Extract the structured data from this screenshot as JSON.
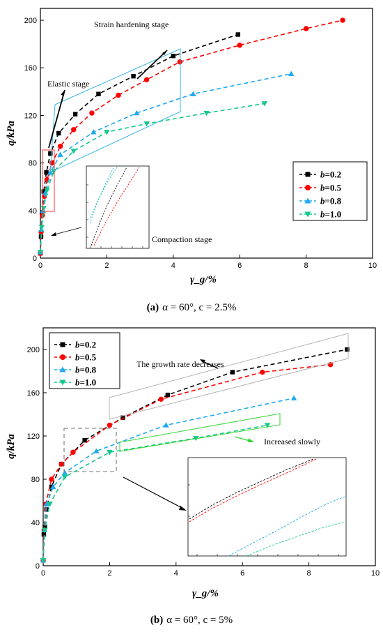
{
  "chart_data": [
    {
      "type": "line",
      "caption_label": "(a)",
      "caption_text": "α = 60°, c = 2.5%",
      "xlabel": "γ_g/%",
      "ylabel": "q/kPa",
      "xlim": [
        0,
        10
      ],
      "ylim": [
        0,
        210
      ],
      "xticks": [
        0,
        2,
        4,
        6,
        8,
        10
      ],
      "yticks": [
        0,
        40,
        80,
        120,
        160,
        200
      ],
      "legend_position": "middle-right",
      "annotations": [
        "Strain hardening stage",
        "Elastic stage",
        "Compaction stage"
      ],
      "series": [
        {
          "name": "b=0.2",
          "color": "#000000",
          "marker": "square",
          "x": [
            0.0,
            0.02,
            0.05,
            0.1,
            0.18,
            0.3,
            0.55,
            1.05,
            1.75,
            2.8,
            4.0,
            5.95
          ],
          "y": [
            4,
            18,
            37,
            56,
            72,
            88,
            105,
            121,
            138,
            153,
            170,
            188
          ]
        },
        {
          "name": "b=0.5",
          "color": "#ff0000",
          "marker": "circle",
          "x": [
            0.0,
            0.02,
            0.06,
            0.12,
            0.2,
            0.35,
            0.6,
            1.0,
            1.55,
            2.35,
            3.2,
            4.2,
            6.0,
            8.0,
            9.1
          ],
          "y": [
            4,
            22,
            36,
            52,
            66,
            80,
            94,
            108,
            122,
            137,
            150,
            165,
            179,
            193,
            200
          ]
        },
        {
          "name": "b=0.8",
          "color": "#1eaaf0",
          "marker": "triangle-up",
          "x": [
            0.0,
            0.03,
            0.08,
            0.15,
            0.3,
            0.6,
            1.6,
            2.9,
            4.6,
            7.55
          ],
          "y": [
            5,
            24,
            40,
            55,
            72,
            87,
            106,
            122,
            138,
            155
          ]
        },
        {
          "name": "b=1.0",
          "color": "#14c88c",
          "marker": "triangle-down",
          "x": [
            0.0,
            0.04,
            0.1,
            0.2,
            0.4,
            1.0,
            2.0,
            3.2,
            5.0,
            6.75
          ],
          "y": [
            5,
            26,
            42,
            57,
            73,
            90,
            106,
            113,
            122,
            130
          ]
        }
      ]
    },
    {
      "type": "line",
      "caption_label": "(b)",
      "caption_text": "α = 60°, c = 5%",
      "xlabel": "γ_g/%",
      "ylabel": "q/kPa",
      "xlim": [
        0,
        10
      ],
      "ylim": [
        0,
        220
      ],
      "xticks": [
        0,
        2,
        4,
        6,
        8,
        10
      ],
      "yticks": [
        0,
        40,
        80,
        120,
        160,
        200
      ],
      "legend_position": "top-left",
      "annotations": [
        "The growth rate decreases",
        "Increased slowly"
      ],
      "series": [
        {
          "name": "b=0.2",
          "color": "#000000",
          "marker": "square",
          "x": [
            0.0,
            0.02,
            0.05,
            0.1,
            0.25,
            0.55,
            1.25,
            2.4,
            3.75,
            5.7,
            9.15
          ],
          "y": [
            5,
            29,
            36,
            52,
            73,
            94,
            116,
            137,
            158,
            179,
            200
          ]
        },
        {
          "name": "b=0.5",
          "color": "#ff0000",
          "marker": "circle",
          "x": [
            0.0,
            0.03,
            0.08,
            0.25,
            0.55,
            0.9,
            2.0,
            3.55,
            6.6,
            8.65
          ],
          "y": [
            5,
            33,
            57,
            80,
            94,
            105,
            130,
            154,
            179,
            186
          ]
        },
        {
          "name": "b=0.8",
          "color": "#1eaaf0",
          "marker": "triangle-up",
          "x": [
            0.0,
            0.04,
            0.1,
            0.3,
            0.65,
            1.6,
            3.7,
            7.55
          ],
          "y": [
            5,
            33,
            57,
            73,
            86,
            106,
            130,
            155
          ]
        },
        {
          "name": "b=1.0",
          "color": "#14c88c",
          "marker": "triangle-down",
          "x": [
            0.0,
            0.05,
            0.2,
            0.65,
            2.0,
            4.6,
            6.75
          ],
          "y": [
            5,
            33,
            57,
            82,
            105,
            118,
            130
          ]
        }
      ]
    }
  ]
}
